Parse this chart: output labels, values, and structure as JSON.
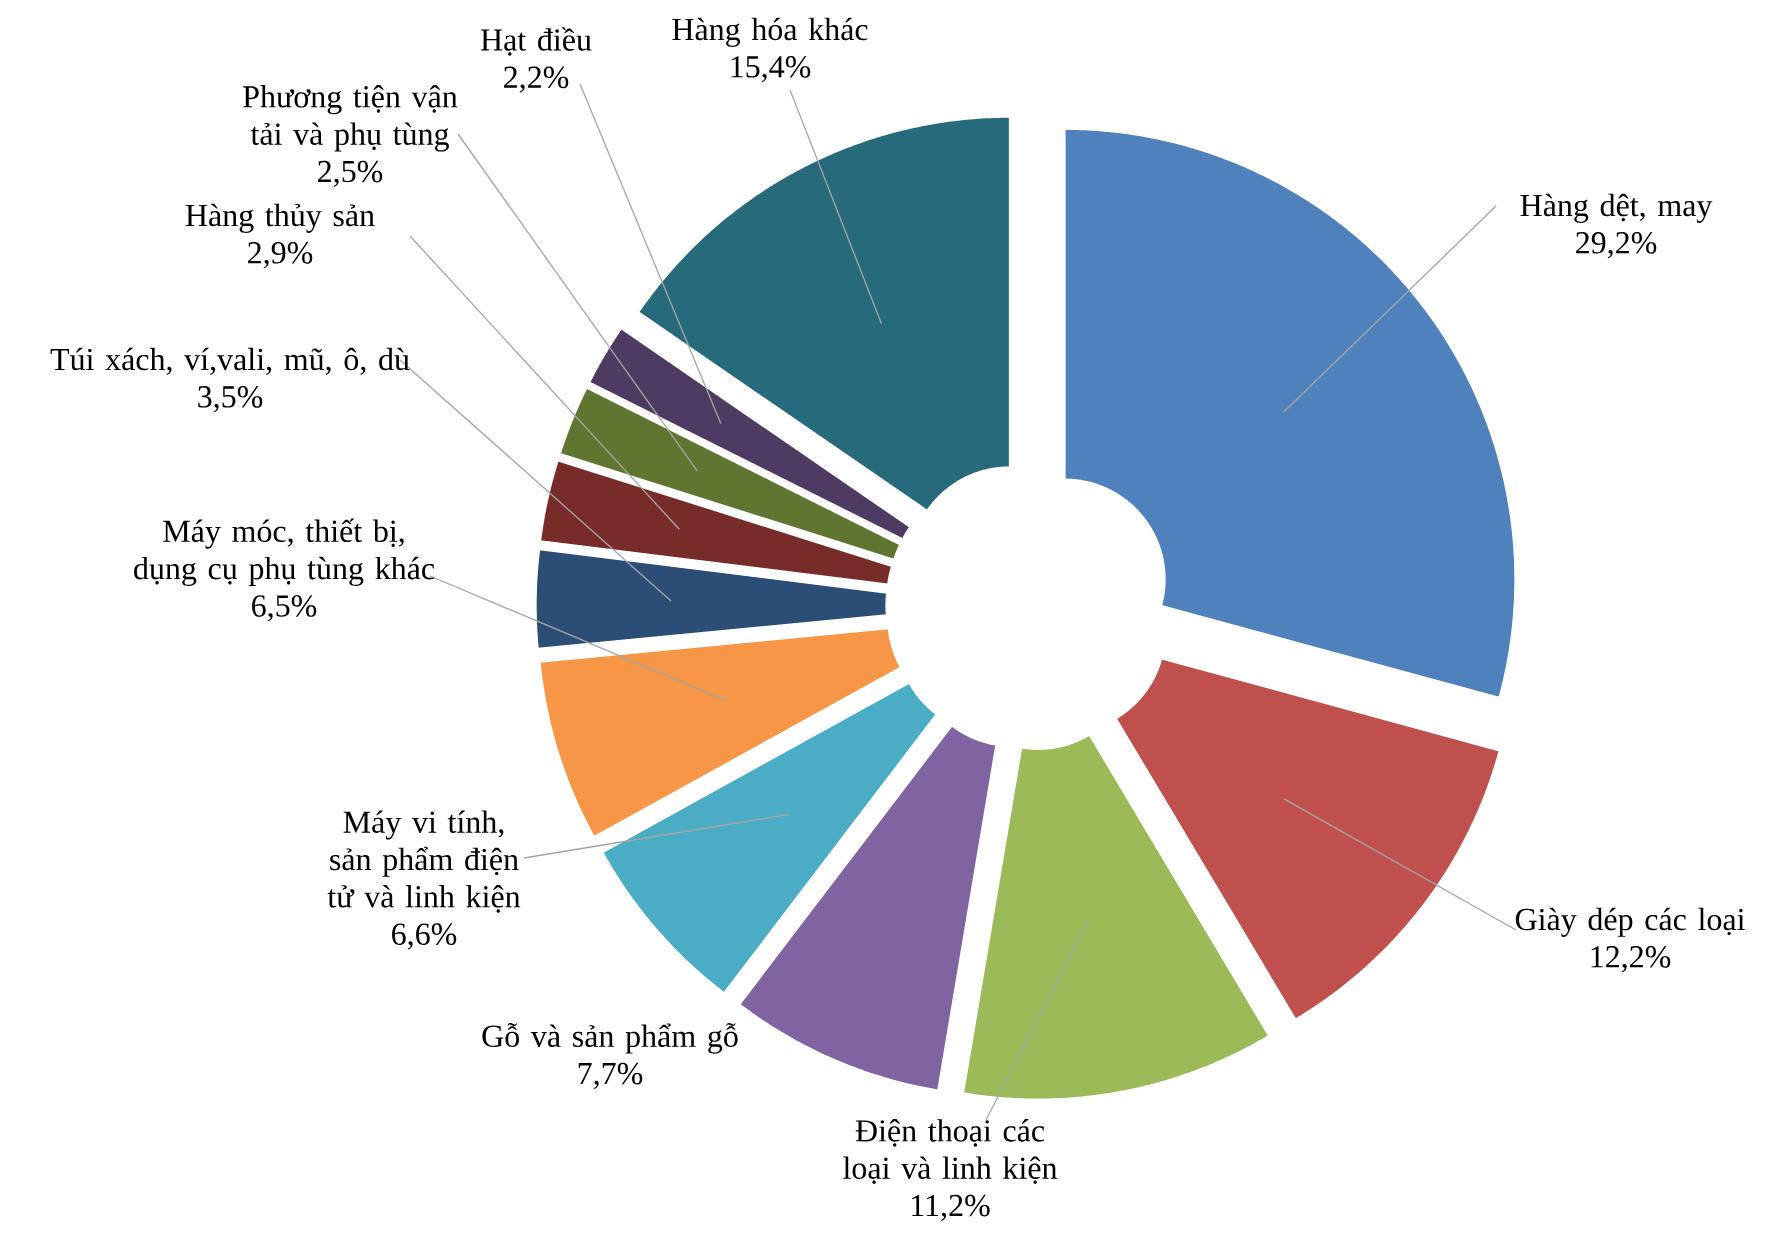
{
  "chart_data": {
    "type": "donut",
    "categories": [
      "Hàng dệt, may",
      "Giày dép các loại",
      "Điện thoại các loại và linh kiện",
      "Gỗ và sản phẩm gỗ",
      "Máy vi tính, sản phẩm điện tử và linh kiện",
      "Máy móc, thiết bị, dụng cụ phụ tùng khác",
      "Túi xách, ví,vali, mũ, ô, dù",
      "Hàng thủy sản",
      "Phương tiện vận tải và phụ tùng",
      "Hạt điều",
      "Hàng hóa khác"
    ],
    "values": [
      29.2,
      12.2,
      11.2,
      7.7,
      6.6,
      6.5,
      3.5,
      2.9,
      2.5,
      2.2,
      15.4
    ],
    "value_labels": [
      "29,2%",
      "12,2%",
      "11,2%",
      "7,7%",
      "6,6%",
      "6,5%",
      "3,5%",
      "2,9%",
      "2,5%",
      "2,2%",
      "15,4%"
    ],
    "colors": [
      "#4f81bd",
      "#c0504d",
      "#9bbb59",
      "#8064a2",
      "#4bacc6",
      "#f79646",
      "#2c4d75",
      "#772c2a",
      "#5f7530",
      "#4d3b62",
      "#276a7c"
    ]
  }
}
